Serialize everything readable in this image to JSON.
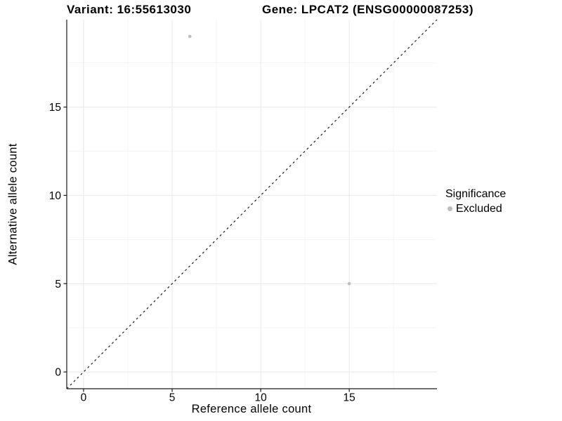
{
  "title": {
    "variant": "Variant: 16:55613030",
    "gene": "Gene: LPCAT2 (ENSG00000087253)"
  },
  "chart_data": {
    "type": "scatter",
    "title": "Variant: 16:55613030   Gene: LPCAT2 (ENSG00000087253)",
    "xlabel": "Reference allele count",
    "ylabel": "Alternative allele count",
    "xlim": [
      -0.95,
      19.95
    ],
    "ylim": [
      -0.95,
      19.95
    ],
    "xticks": [
      0,
      5,
      10,
      15
    ],
    "yticks": [
      0,
      5,
      10,
      15
    ],
    "minor_gridlines": [
      2.5,
      7.5,
      12.5,
      17.5
    ],
    "grid": true,
    "series": [
      {
        "name": "Excluded",
        "color": "#bdbdbd",
        "points": [
          {
            "x": 6,
            "y": 19
          },
          {
            "x": 15,
            "y": 5
          }
        ]
      }
    ],
    "reference_line": {
      "type": "identity y=x",
      "style": "dashed",
      "color": "#1a1a1a"
    },
    "legend": {
      "title": "Significance",
      "position": "right",
      "entries": [
        {
          "label": "Excluded",
          "color": "#bdbdbd",
          "marker": "circle"
        }
      ]
    },
    "colors": {
      "background": "#ffffff",
      "axis": "#1a1a1a",
      "text": "#000000",
      "grid_major": "#e8e8e8",
      "grid_minor": "#f4f4f4"
    }
  }
}
